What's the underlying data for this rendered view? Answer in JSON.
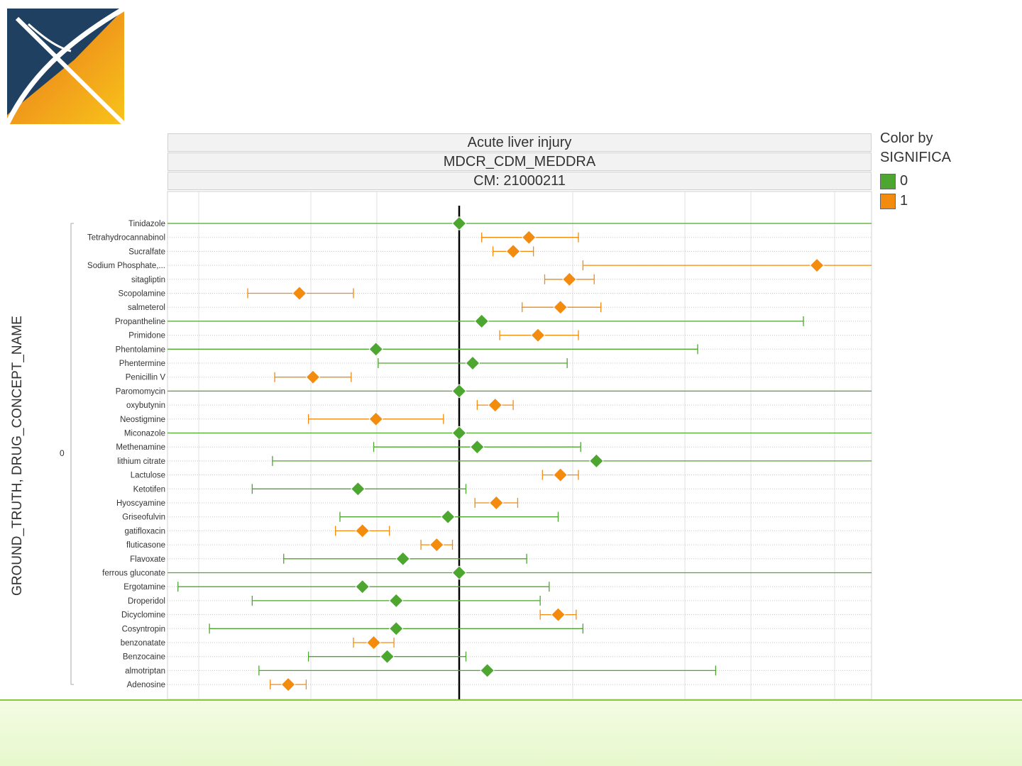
{
  "headers": [
    "Acute liver injury",
    "MDCR_CDM_MEDDRA",
    "CM: 21000211"
  ],
  "legend": {
    "title_line1": "Color by",
    "title_line2": "SIGNIFICA",
    "items": [
      {
        "label": "0",
        "color": "#4ca62f"
      },
      {
        "label": "1",
        "color": "#f38b0f"
      }
    ]
  },
  "y_axis_label": "GROUND_TRUTH, DRUG_CONCEPT_NAME",
  "group_label": "0",
  "chart_data": {
    "type": "forest",
    "reference_line": 0,
    "xlim": [
      -2.5,
      3.8
    ],
    "grid": true,
    "legend_position": "right",
    "rows": [
      {
        "name": "Tinidazole",
        "est": 0.0,
        "lo": -4,
        "hi": 6,
        "sig": 0
      },
      {
        "name": "Tetrahydrocannabinol",
        "est": 0.62,
        "lo": 0.2,
        "hi": 1.06,
        "sig": 1
      },
      {
        "name": "Sucralfate",
        "est": 0.48,
        "lo": 0.3,
        "hi": 0.66,
        "sig": 1
      },
      {
        "name": "Sodium Phosphate,...",
        "est": 3.18,
        "lo": 1.1,
        "hi": 6,
        "sig": 1
      },
      {
        "name": "sitagliptin",
        "est": 0.98,
        "lo": 0.76,
        "hi": 1.2,
        "sig": 1
      },
      {
        "name": "Scopolamine",
        "est": -1.42,
        "lo": -1.88,
        "hi": -0.94,
        "sig": 1
      },
      {
        "name": "salmeterol",
        "est": 0.9,
        "lo": 0.56,
        "hi": 1.26,
        "sig": 1
      },
      {
        "name": "Propantheline",
        "est": 0.2,
        "lo": -4,
        "hi": 3.06,
        "sig": 0
      },
      {
        "name": "Primidone",
        "est": 0.7,
        "lo": 0.36,
        "hi": 1.06,
        "sig": 1
      },
      {
        "name": "Phentolamine",
        "est": -0.74,
        "lo": -4,
        "hi": 2.12,
        "sig": 0
      },
      {
        "name": "Phentermine",
        "est": 0.12,
        "lo": -0.72,
        "hi": 0.96,
        "sig": 0
      },
      {
        "name": "Penicillin V",
        "est": -1.3,
        "lo": -1.64,
        "hi": -0.96,
        "sig": 1
      },
      {
        "name": "Paromomycin",
        "est": 0.0,
        "lo": -4,
        "hi": 6,
        "sig": 0
      },
      {
        "name": "oxybutynin",
        "est": 0.32,
        "lo": 0.16,
        "hi": 0.48,
        "sig": 1
      },
      {
        "name": "Neostigmine",
        "est": -0.74,
        "lo": -1.34,
        "hi": -0.14,
        "sig": 1
      },
      {
        "name": "Miconazole",
        "est": 0.0,
        "lo": -4,
        "hi": 6,
        "sig": 0
      },
      {
        "name": "Methenamine",
        "est": 0.16,
        "lo": -0.76,
        "hi": 1.08,
        "sig": 0
      },
      {
        "name": "lithium citrate",
        "est": 1.22,
        "lo": -1.66,
        "hi": 6,
        "sig": 0
      },
      {
        "name": "Lactulose",
        "est": 0.9,
        "lo": 0.74,
        "hi": 1.06,
        "sig": 1
      },
      {
        "name": "Ketotifen",
        "est": -0.9,
        "lo": -1.84,
        "hi": 0.06,
        "sig": 0
      },
      {
        "name": "Hyoscyamine",
        "est": 0.33,
        "lo": 0.14,
        "hi": 0.52,
        "sig": 1
      },
      {
        "name": "Griseofulvin",
        "est": -0.1,
        "lo": -1.06,
        "hi": 0.88,
        "sig": 0
      },
      {
        "name": "gatifloxacin",
        "est": -0.86,
        "lo": -1.1,
        "hi": -0.62,
        "sig": 1
      },
      {
        "name": "fluticasone",
        "est": -0.2,
        "lo": -0.34,
        "hi": -0.06,
        "sig": 1
      },
      {
        "name": "Flavoxate",
        "est": -0.5,
        "lo": -1.56,
        "hi": 0.6,
        "sig": 0
      },
      {
        "name": "ferrous gluconate",
        "est": 0.0,
        "lo": -4,
        "hi": 6,
        "sig": 0
      },
      {
        "name": "Ergotamine",
        "est": -0.86,
        "lo": -2.5,
        "hi": 0.8,
        "sig": 0
      },
      {
        "name": "Droperidol",
        "est": -0.56,
        "lo": -1.84,
        "hi": 0.72,
        "sig": 0
      },
      {
        "name": "Dicyclomine",
        "est": 0.88,
        "lo": 0.72,
        "hi": 1.04,
        "sig": 1
      },
      {
        "name": "Cosyntropin",
        "est": -0.56,
        "lo": -2.22,
        "hi": 1.1,
        "sig": 0
      },
      {
        "name": "benzonatate",
        "est": -0.76,
        "lo": -0.94,
        "hi": -0.58,
        "sig": 1
      },
      {
        "name": "Benzocaine",
        "est": -0.64,
        "lo": -1.34,
        "hi": 0.06,
        "sig": 0
      },
      {
        "name": "almotriptan",
        "est": 0.25,
        "lo": -1.78,
        "hi": 2.28,
        "sig": 0
      },
      {
        "name": "Adenosine",
        "est": -1.52,
        "lo": -1.68,
        "hi": -1.36,
        "sig": 1
      }
    ]
  }
}
